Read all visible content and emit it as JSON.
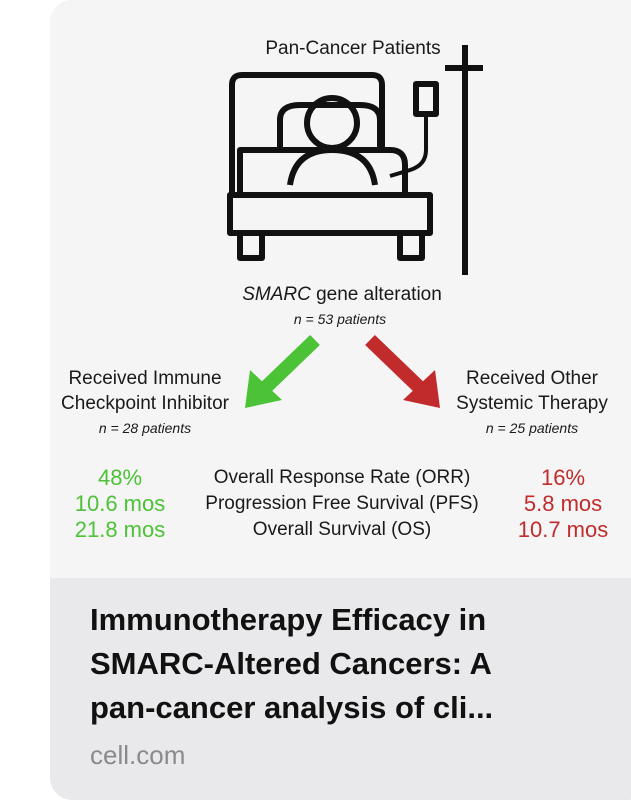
{
  "figure": {
    "top_label": "Pan-Cancer Patients",
    "alteration": {
      "gene": "SMARC",
      "text": "gene alteration"
    },
    "total_n": "n = 53 patients",
    "left_group": {
      "label_line1": "Received Immune",
      "label_line2": "Checkpoint Inhibitor",
      "n": "n = 28 patients"
    },
    "right_group": {
      "label_line1": "Received Other",
      "label_line2": "Systemic Therapy",
      "n": "n = 25 patients"
    },
    "metrics": [
      {
        "left": "48%",
        "name": "Overall Response Rate (ORR)",
        "right": "16%"
      },
      {
        "left": "10.6 mos",
        "name": "Progression Free Survival (PFS)",
        "right": "5.8 mos"
      },
      {
        "left": "21.8 mos",
        "name": "Overall Survival (OS)",
        "right": "10.7 mos"
      }
    ]
  },
  "link": {
    "title_lines": [
      "Immunotherapy Efficacy in",
      "SMARC-Altered Cancers: A",
      "pan-cancer analysis of cli..."
    ],
    "domain": "cell.com"
  }
}
